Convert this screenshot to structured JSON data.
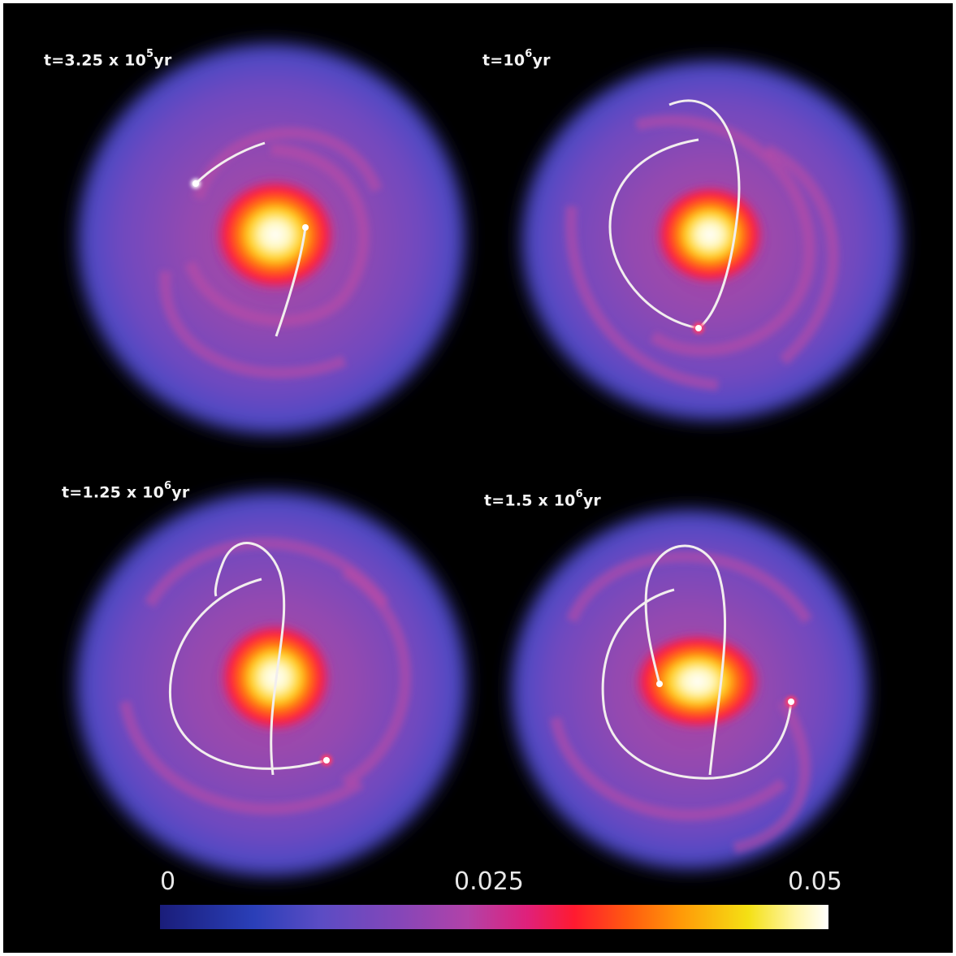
{
  "panels": [
    {
      "id": "tl",
      "label_base": "t=3.25 x 10",
      "label_exp": "5",
      "label_unit": "yr"
    },
    {
      "id": "tr",
      "label_base": "t=10",
      "label_exp": "6",
      "label_unit": "yr"
    },
    {
      "id": "bl",
      "label_base": "t=1.25 x 10",
      "label_exp": "6",
      "label_unit": "yr"
    },
    {
      "id": "br",
      "label_base": "t=1.5 x 10",
      "label_exp": "6",
      "label_unit": "yr"
    }
  ],
  "colorbar": {
    "min_label": "0",
    "mid_label": "0.025",
    "max_label": "0.05",
    "min": 0,
    "mid": 0.025,
    "max": 0.05
  },
  "colors": {
    "background": "#000000",
    "disk_outer": "#5a4bc8",
    "disk_mid": "#9a4cb6",
    "hot_core": "#ff1a40",
    "core_center": "#fffbe0",
    "trajectory": "#f2eeee"
  }
}
